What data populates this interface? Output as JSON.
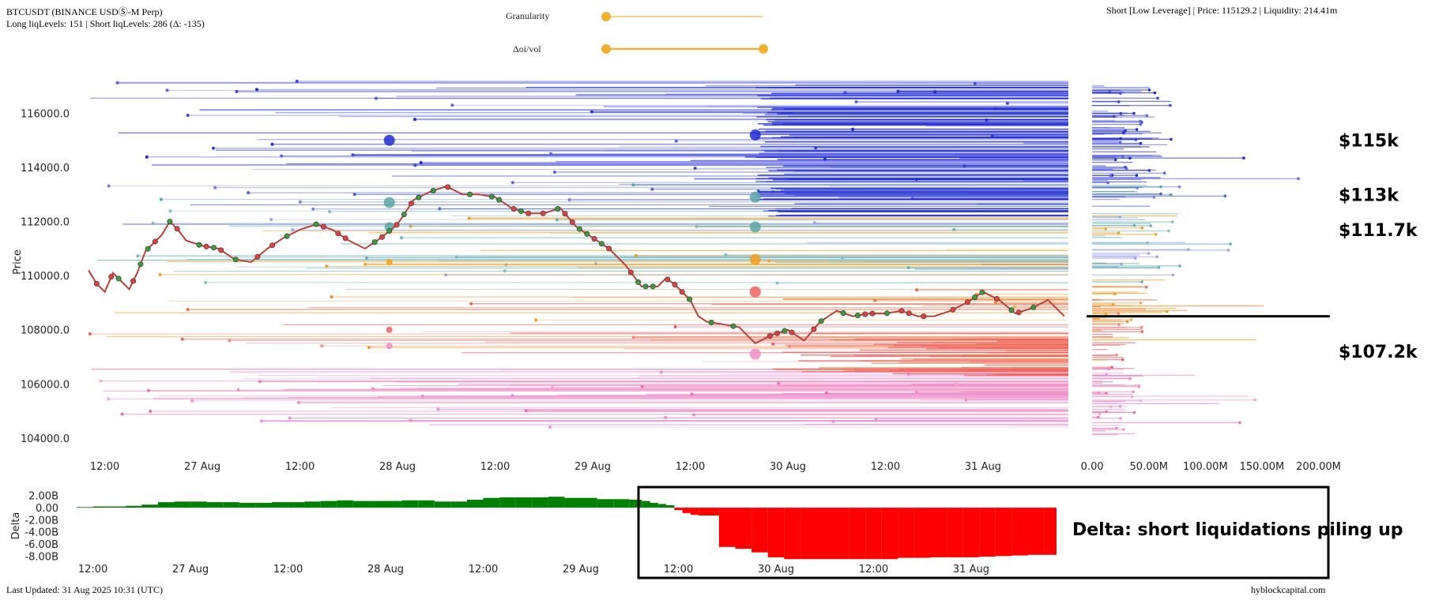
{
  "header": {
    "title": "BTCUSDT (BINANCE USDⓈ-M Perp)",
    "levels_summary": "Long liqLevels: 151 | Short liqLevels: 286 (Δ: -135)",
    "info": "Short [Low Leverage] | Price: 115129.2 | Liquidity: 214.41m"
  },
  "controls": {
    "granularity_label": "Granularity",
    "oi_vol_label": "Δoi/vol",
    "accent_color": "#f0b030"
  },
  "footer": {
    "last_updated": "Last Updated: 31 Aug 2025 10:31 (UTC)",
    "source": "hyblockcapital.com"
  },
  "annotations": {
    "callouts": [
      {
        "label": "$115k",
        "price": 115000
      },
      {
        "label": "$113k",
        "price": 113000
      },
      {
        "label": "$111.7k",
        "price": 111700
      },
      {
        "label": "$107.2k",
        "price": 107200
      }
    ],
    "delta_note": "Delta: short liquidations piling up"
  },
  "chart_data": [
    {
      "type": "line",
      "name": "price-liquidation-heatmap",
      "ylabel": "Price",
      "ylim": [
        103500,
        117500
      ],
      "y_ticks": [
        "116000.0",
        "114000.0",
        "112000.0",
        "110000.0",
        "108000.0",
        "106000.0",
        "104000.0"
      ],
      "y_tick_values": [
        116000,
        114000,
        112000,
        110000,
        108000,
        106000,
        104000
      ],
      "x_ticks": [
        "12:00",
        "27 Aug",
        "12:00",
        "28 Aug",
        "12:00",
        "29 Aug",
        "12:00",
        "30 Aug",
        "12:00",
        "31 Aug"
      ],
      "x_tick_hours": [
        12,
        24,
        36,
        48,
        60,
        72,
        84,
        96,
        108,
        120
      ],
      "xlim_hours": [
        10,
        130.5
      ],
      "price_series": {
        "hours": [
          10,
          11,
          12,
          13,
          14,
          15,
          16,
          17,
          18,
          19,
          20,
          21,
          22,
          24,
          26,
          28,
          30,
          32,
          34,
          36,
          38,
          40,
          42,
          44,
          46,
          48,
          50,
          52,
          54,
          56,
          58,
          60,
          62,
          64,
          66,
          68,
          70,
          72,
          74,
          76,
          78,
          80,
          81,
          82,
          84,
          85,
          86,
          88,
          90,
          92,
          94,
          96,
          98,
          100,
          102,
          104,
          106,
          108,
          110,
          112,
          114,
          116,
          118,
          120,
          122,
          124,
          126,
          128,
          130
        ],
        "values": [
          110200,
          109700,
          109400,
          110100,
          109800,
          109500,
          110100,
          110900,
          111200,
          111500,
          112000,
          111700,
          111300,
          111100,
          111000,
          110600,
          110500,
          111000,
          111400,
          111700,
          111900,
          111700,
          111300,
          111000,
          111400,
          111900,
          112800,
          113100,
          113300,
          113000,
          113000,
          112900,
          112500,
          112300,
          112300,
          112500,
          111800,
          111400,
          111000,
          110400,
          109600,
          109600,
          109900,
          109700,
          109100,
          108500,
          108300,
          108200,
          108100,
          107500,
          107800,
          108000,
          107600,
          108300,
          108700,
          108500,
          108600,
          108600,
          108700,
          108500,
          108500,
          108700,
          109000,
          109400,
          109100,
          108600,
          108800,
          109100,
          108500
        ]
      }
    },
    {
      "type": "bar",
      "name": "liquidity-profile",
      "x_ticks": [
        "0.00",
        "50.00M",
        "100.00M",
        "150.00M",
        "200.00M"
      ],
      "x_tick_values": [
        0,
        50,
        100,
        150,
        200
      ],
      "xlim": [
        -5,
        215
      ],
      "current_price": 108500
    },
    {
      "type": "area",
      "name": "delta",
      "ylabel": "Delta",
      "ylim": [
        -9,
        3
      ],
      "y_ticks": [
        "2.00B",
        "0.00",
        "-2.00B",
        "-4.00B",
        "-6.00B",
        "-8.00B"
      ],
      "y_tick_values": [
        2,
        0,
        -2,
        -4,
        -6,
        -8
      ],
      "x_ticks": [
        "12:00",
        "27 Aug",
        "12:00",
        "28 Aug",
        "12:00",
        "29 Aug",
        "12:00",
        "30 Aug",
        "12:00",
        "31 Aug"
      ],
      "x_tick_hours": [
        12,
        24,
        36,
        48,
        60,
        72,
        84,
        96,
        108,
        120
      ],
      "xlim_hours": [
        10,
        130.5
      ],
      "series": {
        "hours": [
          11,
          13,
          15,
          17,
          19,
          21,
          23,
          25,
          27,
          29,
          31,
          33,
          35,
          37,
          39,
          41,
          43,
          45,
          47,
          49,
          51,
          53,
          55,
          57,
          59,
          61,
          63,
          65,
          67,
          69,
          71,
          73,
          75,
          77,
          79,
          80,
          81,
          82,
          83,
          84,
          85,
          86,
          87,
          88,
          90,
          92,
          94,
          96,
          98,
          100,
          102,
          104,
          106,
          108,
          110,
          112,
          114,
          116,
          118,
          120,
          122,
          124,
          126,
          128,
          130
        ],
        "values": [
          0.1,
          0.2,
          0.2,
          0.3,
          0.5,
          0.9,
          1.0,
          1.0,
          0.9,
          0.9,
          0.8,
          0.8,
          0.9,
          0.9,
          1.0,
          1.1,
          1.2,
          1.1,
          1.1,
          1.1,
          1.2,
          1.2,
          1.0,
          1.0,
          1.3,
          1.6,
          1.7,
          1.7,
          1.7,
          1.8,
          1.6,
          1.6,
          1.4,
          1.4,
          1.3,
          1.1,
          0.8,
          0.6,
          0.4,
          -0.4,
          -0.9,
          -1.2,
          -1.3,
          -1.3,
          -6.5,
          -6.8,
          -7.4,
          -8.2,
          -8.5,
          -8.5,
          -8.5,
          -8.5,
          -8.5,
          -8.5,
          -8.5,
          -8.3,
          -8.3,
          -8.2,
          -8.2,
          -8.2,
          -8.1,
          -8.0,
          -7.9,
          -7.8,
          -7.8
        ]
      }
    }
  ]
}
